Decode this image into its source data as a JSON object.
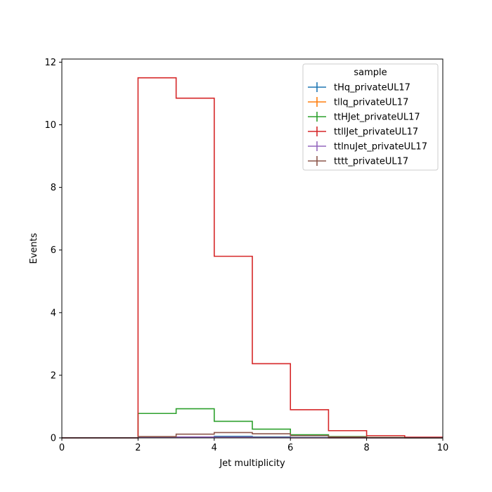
{
  "chart_data": {
    "type": "step-histogram",
    "xlabel": "Jet multiplicity",
    "ylabel": "Events",
    "xlim": [
      0,
      10
    ],
    "ylim": [
      0,
      12.1
    ],
    "x_ticks": [
      0,
      2,
      4,
      6,
      8,
      10
    ],
    "y_ticks": [
      0,
      2,
      4,
      6,
      8,
      10,
      12
    ],
    "bin_edges": [
      0,
      1,
      2,
      3,
      4,
      5,
      6,
      7,
      8,
      9,
      10
    ],
    "legend": {
      "title": "sample",
      "placement": "top-right"
    },
    "series": [
      {
        "name": "tHq_privateUL17",
        "color": "#1f77b4",
        "values": [
          0,
          0,
          0.01,
          0.02,
          0.05,
          0.03,
          0.01,
          0.005,
          0,
          0
        ]
      },
      {
        "name": "tllq_privateUL17",
        "color": "#ff7f0e",
        "values": [
          0,
          0,
          0.01,
          0.02,
          0.02,
          0.01,
          0.005,
          0,
          0,
          0
        ]
      },
      {
        "name": "ttHJet_privateUL17",
        "color": "#2ca02c",
        "values": [
          0,
          0,
          0.78,
          0.93,
          0.53,
          0.28,
          0.1,
          0.04,
          0.01,
          0
        ]
      },
      {
        "name": "ttllJet_privateUL17",
        "color": "#d62728",
        "values": [
          0,
          0,
          11.5,
          10.85,
          5.8,
          2.37,
          0.9,
          0.23,
          0.07,
          0.02
        ]
      },
      {
        "name": "ttlnuJet_privateUL17",
        "color": "#9467bd",
        "values": [
          0,
          0,
          0.02,
          0.03,
          0.02,
          0.01,
          0.005,
          0,
          0,
          0
        ]
      },
      {
        "name": "tttt_privateUL17",
        "color": "#8c564b",
        "values": [
          0,
          0,
          0.04,
          0.12,
          0.17,
          0.13,
          0.07,
          0.03,
          0.01,
          0
        ]
      }
    ]
  }
}
